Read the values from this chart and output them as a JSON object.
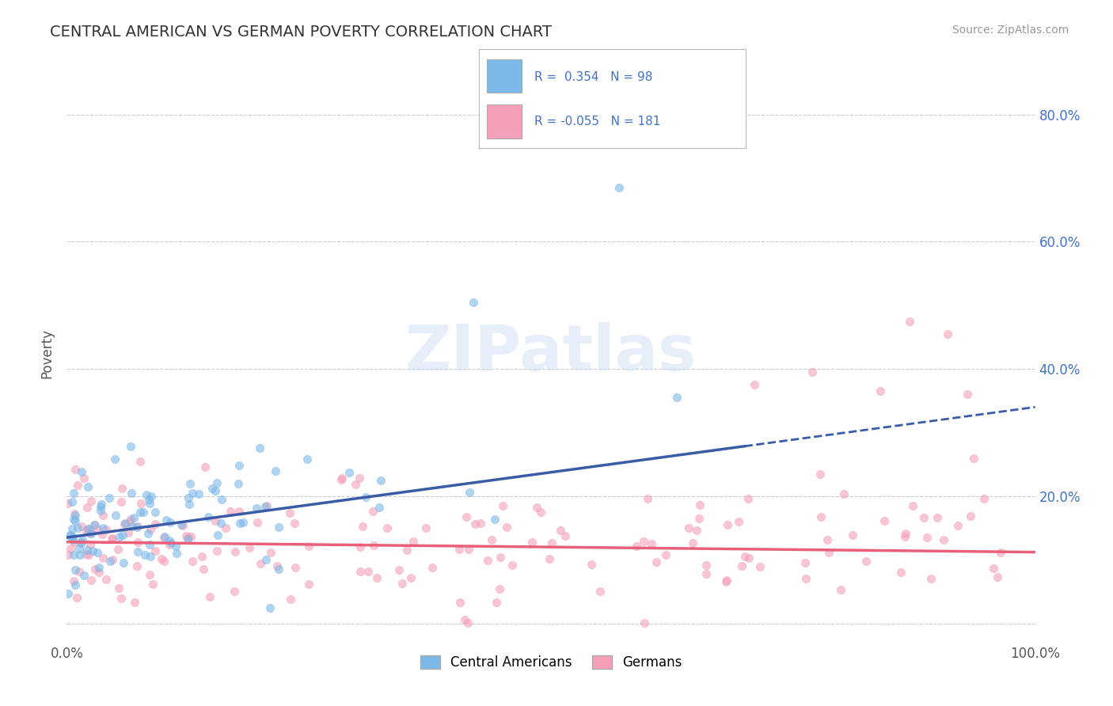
{
  "title": "CENTRAL AMERICAN VS GERMAN POVERTY CORRELATION CHART",
  "source_text": "Source: ZipAtlas.com",
  "ylabel": "Poverty",
  "xlim": [
    0,
    1.0
  ],
  "ylim": [
    -0.03,
    0.88
  ],
  "xticks": [
    0.0,
    0.2,
    0.4,
    0.6,
    0.8,
    1.0
  ],
  "xtick_labels": [
    "0.0%",
    "",
    "",
    "",
    "",
    "100.0%"
  ],
  "yticks": [
    0.0,
    0.2,
    0.4,
    0.6,
    0.8
  ],
  "ytick_labels_right": [
    "",
    "20.0%",
    "40.0%",
    "60.0%",
    "80.0%"
  ],
  "blue_color": "#7cb8e8",
  "pink_color": "#f5a0b8",
  "blue_line_color": "#3a5ca8",
  "pink_line_color": "#e8607a",
  "legend_label1": "Central Americans",
  "legend_label2": "Germans",
  "R_blue": 0.354,
  "N_blue": 98,
  "R_pink": -0.055,
  "N_pink": 181,
  "watermark": "ZIPatlas",
  "background_color": "#ffffff",
  "grid_color": "#cccccc",
  "title_color": "#4472c4",
  "source_color": "#999999",
  "blue_intercept": 0.135,
  "blue_slope": 0.205,
  "pink_intercept": 0.128,
  "pink_slope": -0.016
}
